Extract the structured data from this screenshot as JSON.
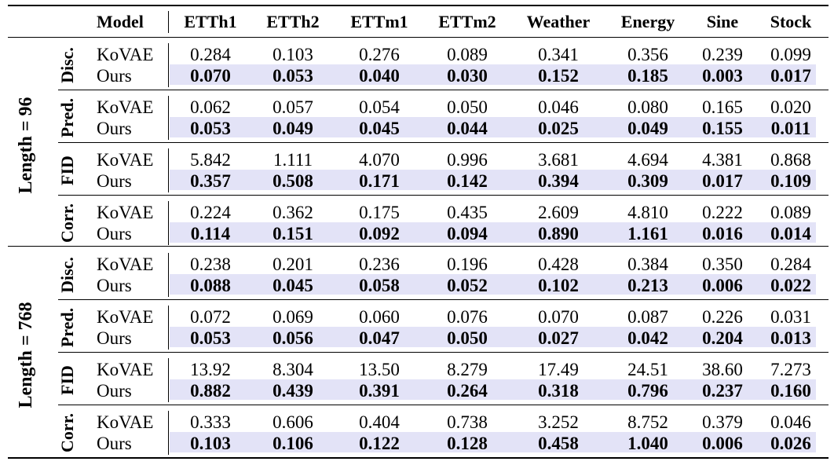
{
  "columns": [
    "Model",
    "ETTh1",
    "ETTh2",
    "ETTm1",
    "ETTm2",
    "Weather",
    "Energy",
    "Sine",
    "Stock"
  ],
  "sections": [
    {
      "label": "Length = 96",
      "groups": [
        {
          "metric": "Disc.",
          "rows": [
            {
              "model": "KoVAE",
              "values": [
                "0.284",
                "0.103",
                "0.276",
                "0.089",
                "0.341",
                "0.356",
                "0.239",
                "0.099"
              ]
            },
            {
              "model": "Ours",
              "values": [
                "0.070",
                "0.053",
                "0.040",
                "0.030",
                "0.152",
                "0.185",
                "0.003",
                "0.017"
              ]
            }
          ]
        },
        {
          "metric": "Pred.",
          "rows": [
            {
              "model": "KoVAE",
              "values": [
                "0.062",
                "0.057",
                "0.054",
                "0.050",
                "0.046",
                "0.080",
                "0.165",
                "0.020"
              ]
            },
            {
              "model": "Ours",
              "values": [
                "0.053",
                "0.049",
                "0.045",
                "0.044",
                "0.025",
                "0.049",
                "0.155",
                "0.011"
              ]
            }
          ]
        },
        {
          "metric": "FID",
          "rows": [
            {
              "model": "KoVAE",
              "values": [
                "5.842",
                "1.111",
                "4.070",
                "0.996",
                "3.681",
                "4.694",
                "4.381",
                "0.868"
              ]
            },
            {
              "model": "Ours",
              "values": [
                "0.357",
                "0.508",
                "0.171",
                "0.142",
                "0.394",
                "0.309",
                "0.017",
                "0.109"
              ]
            }
          ]
        },
        {
          "metric": "Corr.",
          "rows": [
            {
              "model": "KoVAE",
              "values": [
                "0.224",
                "0.362",
                "0.175",
                "0.435",
                "2.609",
                "4.810",
                "0.222",
                "0.089"
              ]
            },
            {
              "model": "Ours",
              "values": [
                "0.114",
                "0.151",
                "0.092",
                "0.094",
                "0.890",
                "1.161",
                "0.016",
                "0.014"
              ]
            }
          ]
        }
      ]
    },
    {
      "label": "Length = 768",
      "groups": [
        {
          "metric": "Disc.",
          "rows": [
            {
              "model": "KoVAE",
              "values": [
                "0.238",
                "0.201",
                "0.236",
                "0.196",
                "0.428",
                "0.384",
                "0.350",
                "0.284"
              ]
            },
            {
              "model": "Ours",
              "values": [
                "0.088",
                "0.045",
                "0.058",
                "0.052",
                "0.102",
                "0.213",
                "0.006",
                "0.022"
              ]
            }
          ]
        },
        {
          "metric": "Pred.",
          "rows": [
            {
              "model": "KoVAE",
              "values": [
                "0.072",
                "0.069",
                "0.060",
                "0.076",
                "0.070",
                "0.087",
                "0.226",
                "0.031"
              ]
            },
            {
              "model": "Ours",
              "values": [
                "0.053",
                "0.056",
                "0.047",
                "0.050",
                "0.027",
                "0.042",
                "0.204",
                "0.013"
              ]
            }
          ]
        },
        {
          "metric": "FID",
          "rows": [
            {
              "model": "KoVAE",
              "values": [
                "13.92",
                "8.304",
                "13.50",
                "8.279",
                "17.49",
                "24.51",
                "38.60",
                "7.273"
              ]
            },
            {
              "model": "Ours",
              "values": [
                "0.882",
                "0.439",
                "0.391",
                "0.264",
                "0.318",
                "0.796",
                "0.237",
                "0.160"
              ]
            }
          ]
        },
        {
          "metric": "Corr.",
          "rows": [
            {
              "model": "KoVAE",
              "values": [
                "0.333",
                "0.606",
                "0.404",
                "0.738",
                "3.252",
                "8.752",
                "0.379",
                "0.046"
              ]
            },
            {
              "model": "Ours",
              "values": [
                "0.103",
                "0.106",
                "0.122",
                "0.128",
                "0.458",
                "1.040",
                "0.006",
                "0.026"
              ]
            }
          ]
        }
      ]
    }
  ],
  "colors": {
    "highlight_band": "#e3e3f7",
    "rule": "#000000"
  }
}
